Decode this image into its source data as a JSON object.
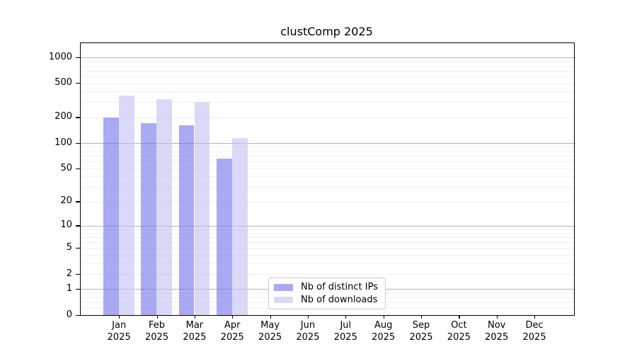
{
  "chart_data": {
    "type": "bar",
    "title": "clustComp 2025",
    "categories": [
      "Jan",
      "Feb",
      "Mar",
      "Apr",
      "May",
      "Jun",
      "Jul",
      "Aug",
      "Sep",
      "Oct",
      "Nov",
      "Dec"
    ],
    "x_sublabel_year": "2025",
    "series": [
      {
        "name": "Nb of distinct IPs",
        "values": [
          200,
          172,
          160,
          65,
          0,
          0,
          0,
          0,
          0,
          0,
          0,
          0
        ],
        "color": "rgba(112,112,237,0.6)"
      },
      {
        "name": "Nb of downloads",
        "values": [
          358,
          325,
          302,
          114,
          0,
          0,
          0,
          0,
          0,
          0,
          0,
          0
        ],
        "color": "rgba(193,193,243,0.6)"
      }
    ],
    "yscale": "log10(value+1)",
    "yticks": [
      0,
      1,
      2,
      5,
      10,
      20,
      50,
      100,
      200,
      500,
      1000
    ],
    "ylim": [
      0,
      1450
    ],
    "xlabel": "",
    "ylabel": "",
    "grid": true,
    "legend_position": "lower-center",
    "colors": {
      "major_grid": "#b3b3b3",
      "minor_grid": "#efefef",
      "axis": "#000000",
      "text": "#000000",
      "background": "#ffffff"
    }
  }
}
